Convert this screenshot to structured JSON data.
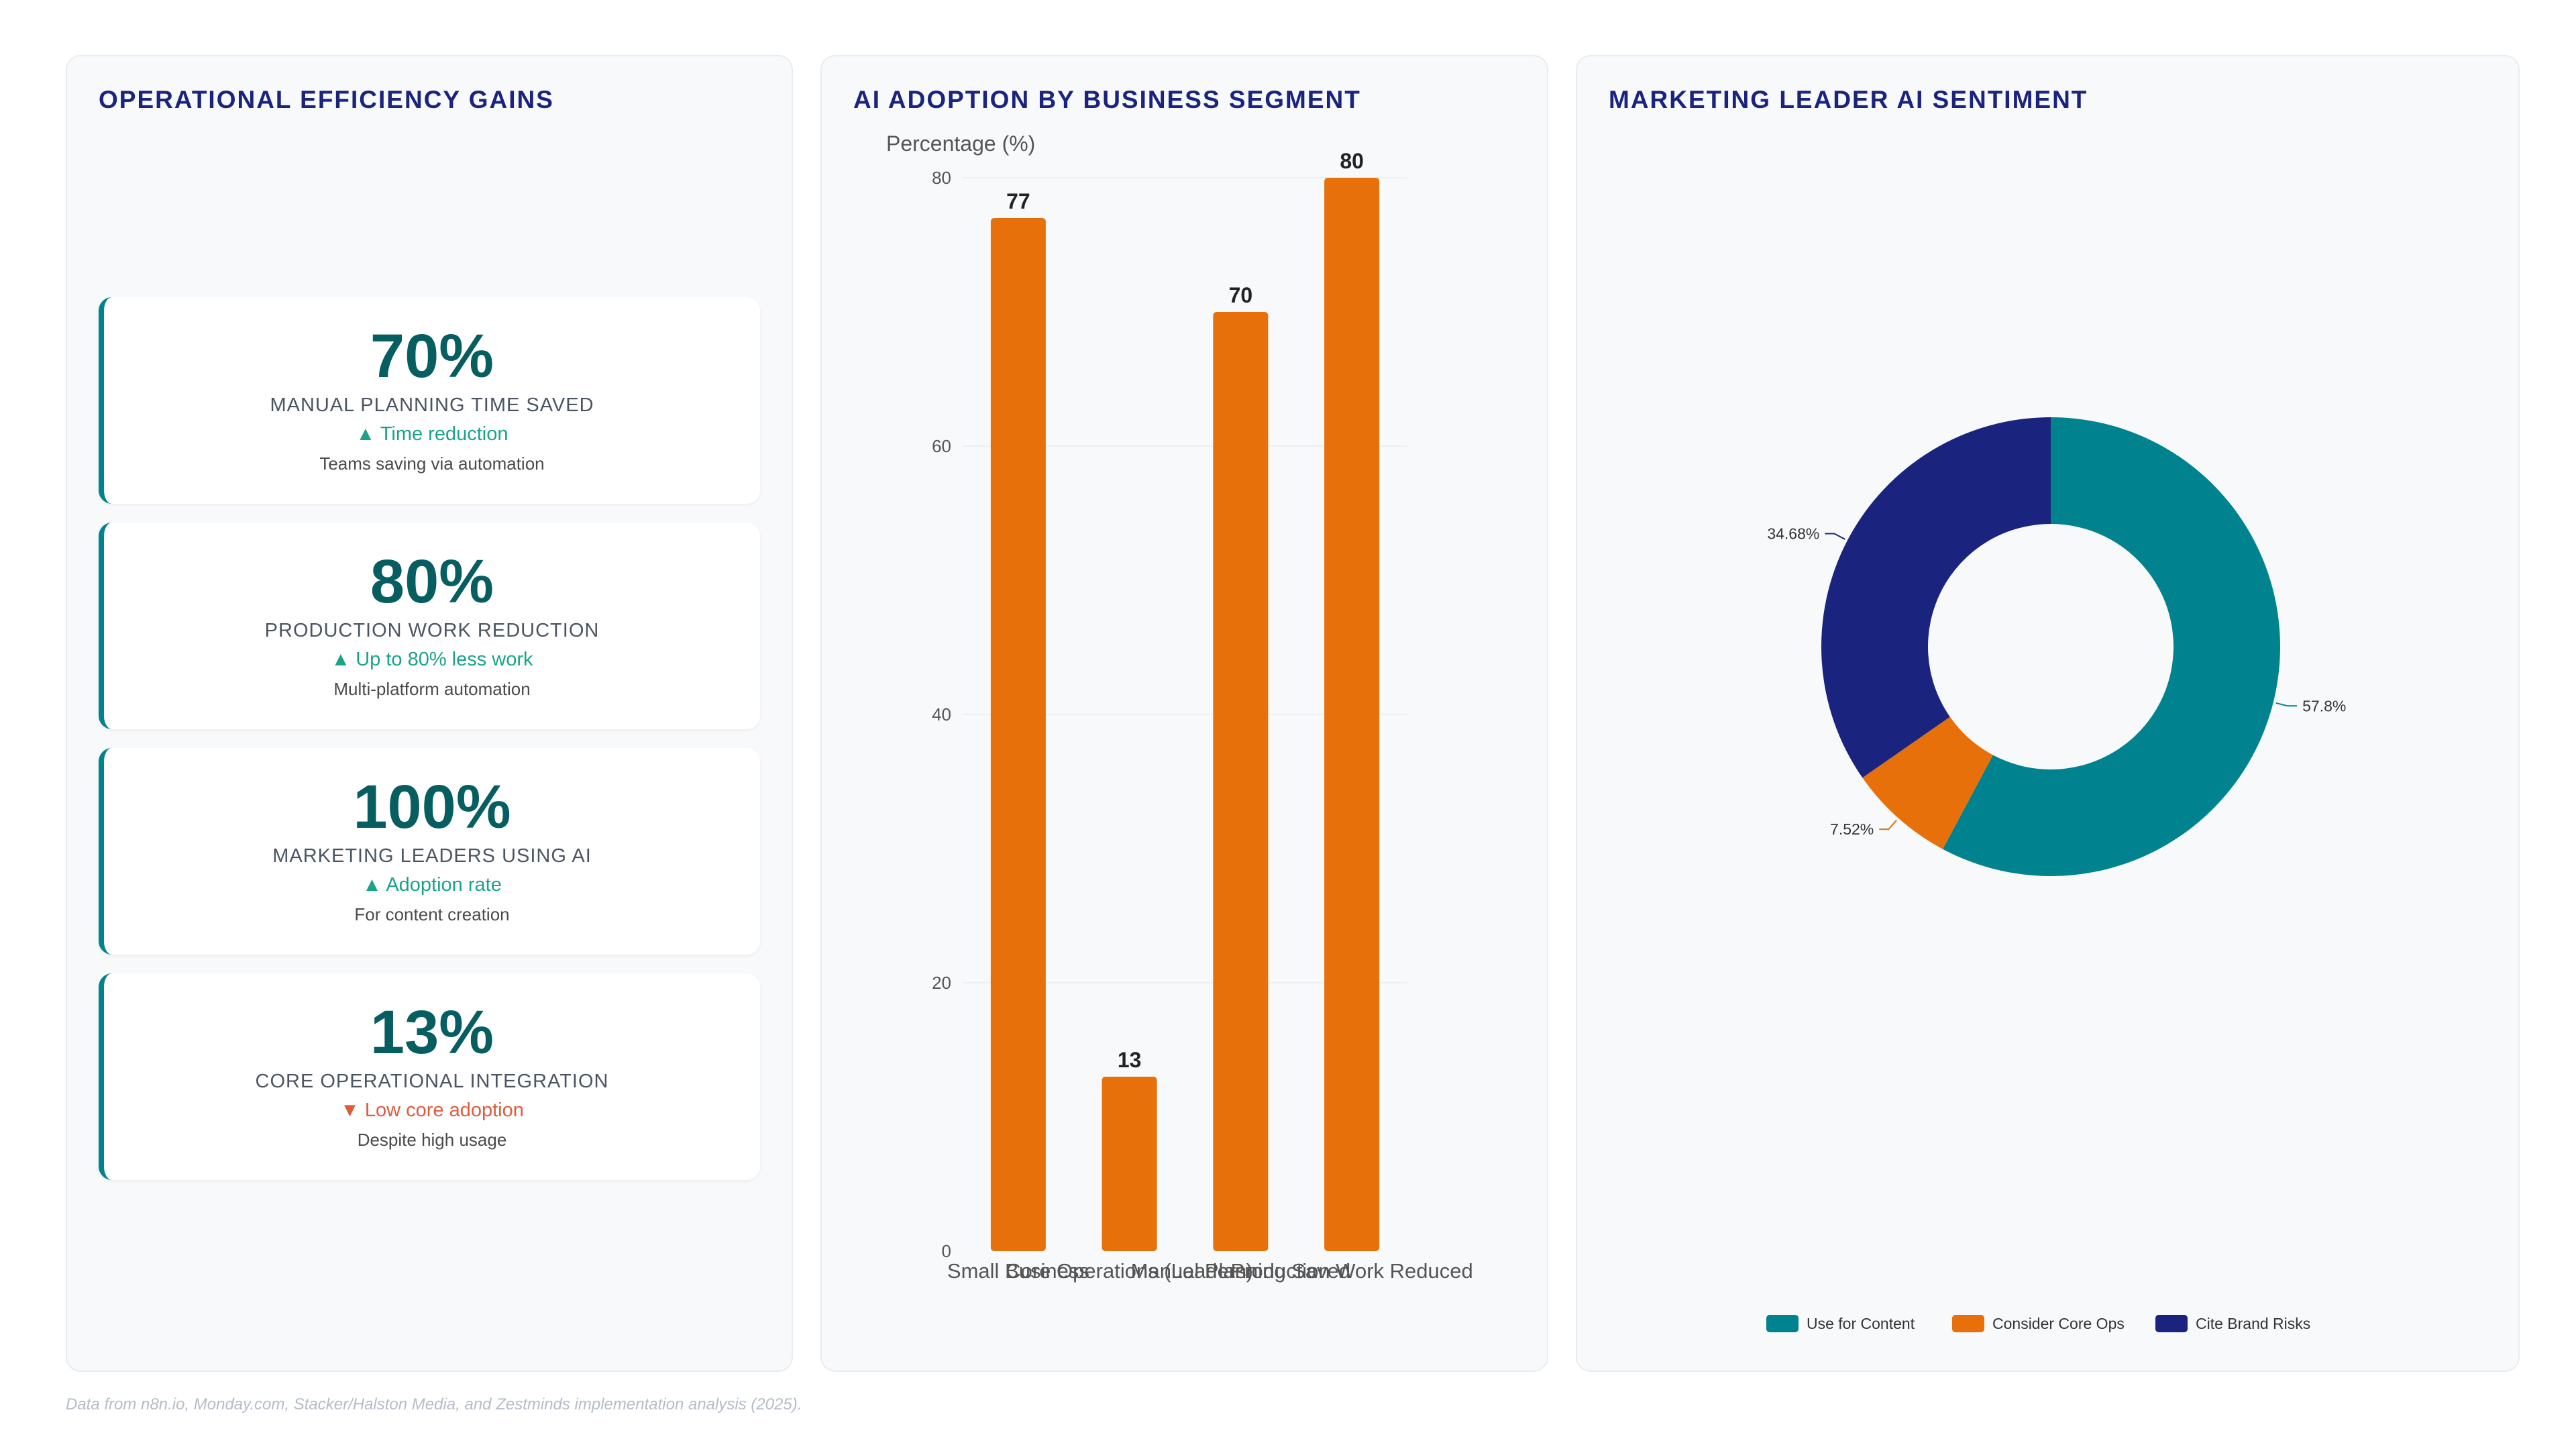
{
  "panels": {
    "efficiency": {
      "title": "OPERATIONAL EFFICIENCY GAINS",
      "cards": [
        {
          "value": "70%",
          "label": "MANUAL PLANNING TIME SAVED",
          "trend": "▲ Time reduction",
          "trend_dir": "up",
          "note": "Teams saving via automation"
        },
        {
          "value": "80%",
          "label": "PRODUCTION WORK REDUCTION",
          "trend": "▲ Up to 80% less work",
          "trend_dir": "up",
          "note": "Multi-platform automation"
        },
        {
          "value": "100%",
          "label": "MARKETING LEADERS USING AI",
          "trend": "▲ Adoption rate",
          "trend_dir": "up",
          "note": "For content creation"
        },
        {
          "value": "13%",
          "label": "CORE OPERATIONAL INTEGRATION",
          "trend": "▼ Low core adoption",
          "trend_dir": "down",
          "note": "Despite high usage"
        }
      ]
    },
    "adoption": {
      "title": "AI ADOPTION BY BUSINESS SEGMENT"
    },
    "sentiment": {
      "title": "MARKETING LEADER AI SENTIMENT"
    }
  },
  "footer": "Data from n8n.io, Monday.com, Stacker/Halston Media, and Zestminds implementation analysis (2025).",
  "chart_data": [
    {
      "type": "bar",
      "title": "AI ADOPTION BY BUSINESS SEGMENT",
      "ylabel": "Percentage (%)",
      "xlabel": "",
      "categories": [
        "Small Business",
        "Core Operations (Leaders)",
        "Manual Planning Saved",
        "Production Work Reduced"
      ],
      "x_tick_labels": [
        "Small Business",
        "Core Operations (Leaders)",
        "Manual Planning Saved",
        "Production Work Reduced"
      ],
      "values": [
        77,
        13,
        70,
        80
      ],
      "ylim": [
        0,
        80
      ],
      "yticks": [
        0,
        20,
        40,
        60,
        80
      ],
      "grid": true,
      "color": "#e8700a",
      "data_labels": true
    },
    {
      "type": "pie",
      "variant": "donut",
      "title": "MARKETING LEADER AI SENTIMENT",
      "labels": [
        "Use for Content",
        "Consider Core Ops",
        "Cite Brand Risks"
      ],
      "values": [
        57.8,
        7.52,
        34.68
      ],
      "value_labels": [
        "57.8%",
        "7.52%",
        "34.68%"
      ],
      "colors": [
        "#00838f",
        "#e8700a",
        "#1a237e"
      ],
      "legend": "bottom"
    }
  ]
}
